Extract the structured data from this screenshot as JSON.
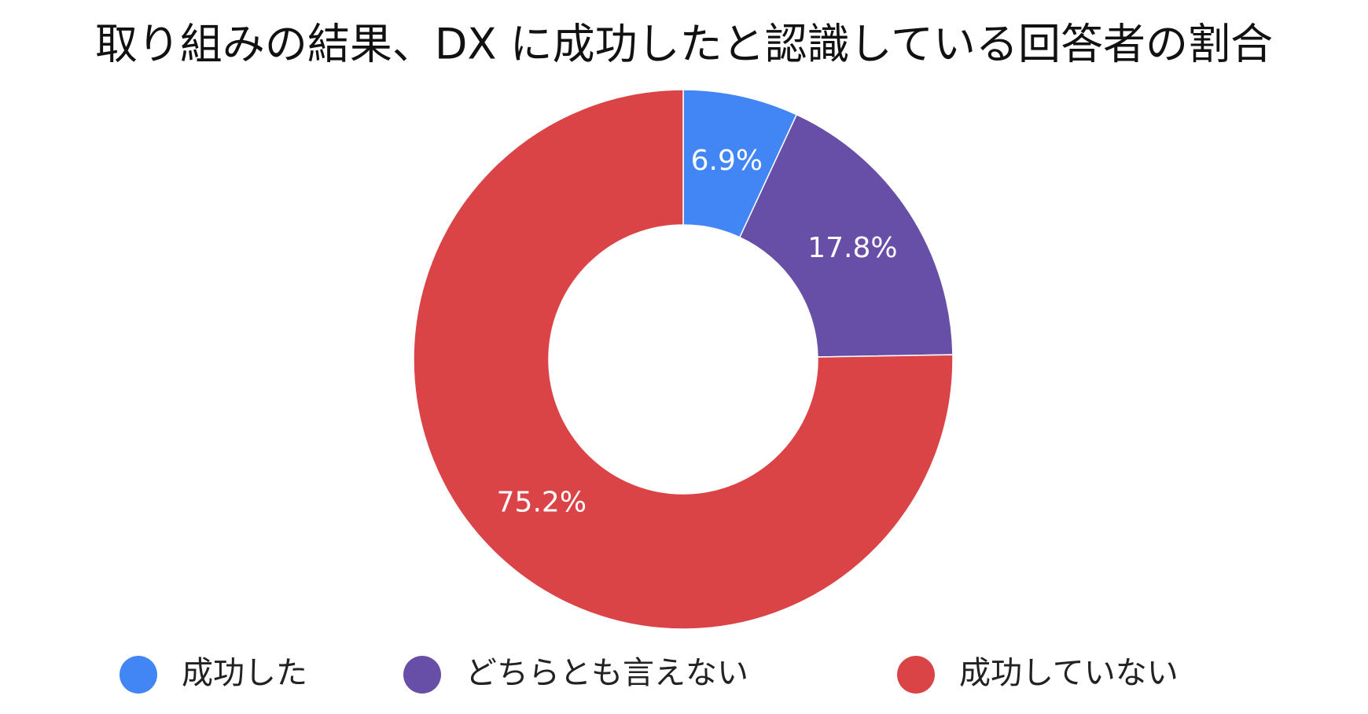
{
  "chart_data": {
    "type": "donut",
    "title": "取り組みの結果、DX に成功したと認識している回答者の割合",
    "categories": [
      "成功した",
      "どちらとも言えない",
      "成功していない"
    ],
    "values": [
      6.9,
      17.8,
      75.2
    ],
    "value_labels": [
      "6.9%",
      "17.8%",
      "75.2%"
    ],
    "colors": [
      "#4285f4",
      "#674ea7",
      "#db4446"
    ],
    "legend": "bottom"
  }
}
